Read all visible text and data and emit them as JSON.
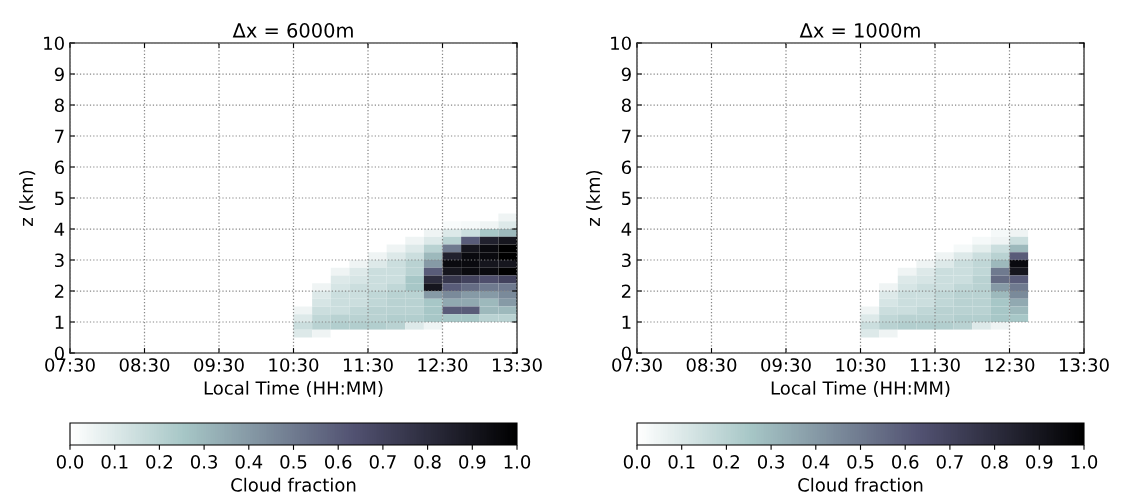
{
  "chart_data": [
    {
      "type": "heatmap",
      "title": "Δx = 6000m",
      "xlabel": "Local Time (HH:MM)",
      "ylabel": "z (km)",
      "clabel": "Cloud fraction",
      "grid": true,
      "x": [
        10.625,
        10.875,
        11.125,
        11.375,
        11.625,
        11.875,
        12.125,
        12.375,
        12.625,
        12.875,
        13.125,
        13.375
      ],
      "y": [
        4.375,
        4.125,
        3.875,
        3.625,
        3.375,
        3.125,
        2.875,
        2.625,
        2.375,
        2.125,
        1.875,
        1.625,
        1.375,
        1.125,
        0.875,
        0.625
      ],
      "cells": [
        [
          0,
          0,
          0,
          0,
          0,
          0,
          0,
          0,
          0,
          0,
          0,
          0.05
        ],
        [
          0,
          0,
          0,
          0,
          0,
          0,
          0,
          0,
          0.02,
          0.03,
          0.05,
          0.1
        ],
        [
          0,
          0,
          0,
          0,
          0,
          0,
          0,
          0.05,
          0.1,
          0.15,
          0.25,
          0.3
        ],
        [
          0,
          0,
          0,
          0,
          0,
          0,
          0.05,
          0.1,
          0.2,
          0.6,
          0.85,
          0.9
        ],
        [
          0,
          0,
          0,
          0,
          0,
          0.05,
          0.1,
          0.2,
          0.5,
          0.9,
          0.95,
          1.0
        ],
        [
          0,
          0,
          0,
          0,
          0.05,
          0.1,
          0.15,
          0.3,
          0.85,
          0.95,
          0.95,
          1.0
        ],
        [
          0,
          0,
          0,
          0.05,
          0.1,
          0.15,
          0.2,
          0.4,
          0.95,
          0.95,
          0.9,
          0.9
        ],
        [
          0,
          0,
          0.05,
          0.1,
          0.15,
          0.15,
          0.2,
          0.6,
          0.9,
          0.95,
          0.95,
          1.0
        ],
        [
          0,
          0,
          0.1,
          0.12,
          0.15,
          0.15,
          0.25,
          0.8,
          0.75,
          0.7,
          0.65,
          0.7
        ],
        [
          0,
          0.05,
          0.12,
          0.15,
          0.15,
          0.18,
          0.25,
          0.9,
          0.6,
          0.55,
          0.5,
          0.5
        ],
        [
          0,
          0.1,
          0.15,
          0.15,
          0.18,
          0.2,
          0.2,
          0.4,
          0.45,
          0.4,
          0.4,
          0.45
        ],
        [
          0,
          0.12,
          0.15,
          0.15,
          0.18,
          0.2,
          0.2,
          0.25,
          0.35,
          0.35,
          0.3,
          0.4
        ],
        [
          0.05,
          0.15,
          0.15,
          0.18,
          0.2,
          0.2,
          0.2,
          0.25,
          0.6,
          0.6,
          0.3,
          0.3
        ],
        [
          0.1,
          0.18,
          0.2,
          0.2,
          0.2,
          0.22,
          0.22,
          0.25,
          0.25,
          0.25,
          0.2,
          0.2
        ],
        [
          0.15,
          0.2,
          0.22,
          0.22,
          0.22,
          0.2,
          0.1,
          0.05,
          0,
          0,
          0,
          0
        ],
        [
          0.1,
          0.05,
          0,
          0,
          0,
          0,
          0,
          0,
          0,
          0,
          0,
          0
        ]
      ],
      "xlim": [
        7.5,
        13.5
      ],
      "xticks": [
        {
          "value": 7.5,
          "label": "07:30"
        },
        {
          "value": 8.5,
          "label": "08:30"
        },
        {
          "value": 9.5,
          "label": "09:30"
        },
        {
          "value": 10.5,
          "label": "10:30"
        },
        {
          "value": 11.5,
          "label": "11:30"
        },
        {
          "value": 12.5,
          "label": "12:30"
        },
        {
          "value": 13.5,
          "label": "13:30"
        }
      ],
      "ylim": [
        0,
        10
      ],
      "yticks": [
        0,
        1,
        2,
        3,
        4,
        5,
        6,
        7,
        8,
        9,
        10
      ],
      "clim": [
        0,
        1
      ],
      "cticks": [
        {
          "value": 0,
          "label": "0.0"
        },
        {
          "value": 0.1,
          "label": "0.1"
        },
        {
          "value": 0.2,
          "label": "0.2"
        },
        {
          "value": 0.3,
          "label": "0.3"
        },
        {
          "value": 0.4,
          "label": "0.4"
        },
        {
          "value": 0.5,
          "label": "0.5"
        },
        {
          "value": 0.6,
          "label": "0.6"
        },
        {
          "value": 0.7,
          "label": "0.7"
        },
        {
          "value": 0.8,
          "label": "0.8"
        },
        {
          "value": 0.9,
          "label": "0.9"
        },
        {
          "value": 1,
          "label": "1.0"
        }
      ]
    },
    {
      "type": "heatmap",
      "title": "Δx = 1000m",
      "xlabel": "Local Time (HH:MM)",
      "ylabel": "z (km)",
      "clabel": "Cloud fraction",
      "grid": true,
      "x": [
        10.625,
        10.875,
        11.125,
        11.375,
        11.625,
        11.875,
        12.125,
        12.375,
        12.625,
        12.875,
        13.125,
        13.375
      ],
      "y": [
        4.375,
        4.125,
        3.875,
        3.625,
        3.375,
        3.125,
        2.875,
        2.625,
        2.375,
        2.125,
        1.875,
        1.625,
        1.375,
        1.125,
        0.875,
        0.625
      ],
      "cells": [
        [
          0,
          0,
          0,
          0,
          0,
          0,
          0,
          0,
          0,
          null,
          null,
          null
        ],
        [
          0,
          0,
          0,
          0,
          0,
          0,
          0,
          0,
          0,
          null,
          null,
          null
        ],
        [
          0,
          0,
          0,
          0,
          0,
          0,
          0,
          0.03,
          0.05,
          null,
          null,
          null
        ],
        [
          0,
          0,
          0,
          0,
          0,
          0,
          0.03,
          0.05,
          0.15,
          null,
          null,
          null
        ],
        [
          0,
          0,
          0,
          0,
          0,
          0.03,
          0.08,
          0.15,
          0.3,
          null,
          null,
          null
        ],
        [
          0,
          0,
          0,
          0,
          0.05,
          0.1,
          0.15,
          0.2,
          0.6,
          null,
          null,
          null
        ],
        [
          0,
          0,
          0,
          0.05,
          0.1,
          0.15,
          0.18,
          0.3,
          0.95,
          null,
          null,
          null
        ],
        [
          0,
          0,
          0.05,
          0.1,
          0.15,
          0.15,
          0.18,
          0.5,
          0.9,
          null,
          null,
          null
        ],
        [
          0,
          0,
          0.1,
          0.12,
          0.15,
          0.15,
          0.2,
          0.55,
          0.6,
          null,
          null,
          null
        ],
        [
          0,
          0.05,
          0.12,
          0.15,
          0.15,
          0.18,
          0.2,
          0.4,
          0.5,
          null,
          null,
          null
        ],
        [
          0,
          0.1,
          0.15,
          0.15,
          0.18,
          0.2,
          0.2,
          0.3,
          0.45,
          null,
          null,
          null
        ],
        [
          0,
          0.12,
          0.15,
          0.15,
          0.18,
          0.2,
          0.2,
          0.25,
          0.35,
          null,
          null,
          null
        ],
        [
          0.05,
          0.15,
          0.15,
          0.18,
          0.2,
          0.2,
          0.2,
          0.25,
          0.3,
          null,
          null,
          null
        ],
        [
          0.1,
          0.18,
          0.2,
          0.2,
          0.2,
          0.22,
          0.22,
          0.25,
          0.25,
          null,
          null,
          null
        ],
        [
          0.15,
          0.2,
          0.22,
          0.22,
          0.22,
          0.2,
          0.1,
          0.05,
          0,
          null,
          null,
          null
        ],
        [
          0.1,
          0.05,
          0,
          0,
          0,
          0,
          0,
          0,
          0,
          null,
          null,
          null
        ]
      ],
      "xlim": [
        7.5,
        13.5
      ],
      "xticks": [
        {
          "value": 7.5,
          "label": "07:30"
        },
        {
          "value": 8.5,
          "label": "08:30"
        },
        {
          "value": 9.5,
          "label": "09:30"
        },
        {
          "value": 10.5,
          "label": "10:30"
        },
        {
          "value": 11.5,
          "label": "11:30"
        },
        {
          "value": 12.5,
          "label": "12:30"
        },
        {
          "value": 13.5,
          "label": "13:30"
        }
      ],
      "ylim": [
        0,
        10
      ],
      "yticks": [
        0,
        1,
        2,
        3,
        4,
        5,
        6,
        7,
        8,
        9,
        10
      ],
      "clim": [
        0,
        1
      ],
      "cticks": [
        {
          "value": 0,
          "label": "0.0"
        },
        {
          "value": 0.1,
          "label": "0.1"
        },
        {
          "value": 0.2,
          "label": "0.2"
        },
        {
          "value": 0.3,
          "label": "0.3"
        },
        {
          "value": 0.4,
          "label": "0.4"
        },
        {
          "value": 0.5,
          "label": "0.5"
        },
        {
          "value": 0.6,
          "label": "0.6"
        },
        {
          "value": 0.7,
          "label": "0.7"
        },
        {
          "value": 0.8,
          "label": "0.8"
        },
        {
          "value": 0.9,
          "label": "0.9"
        },
        {
          "value": 1,
          "label": "1.0"
        }
      ]
    }
  ]
}
